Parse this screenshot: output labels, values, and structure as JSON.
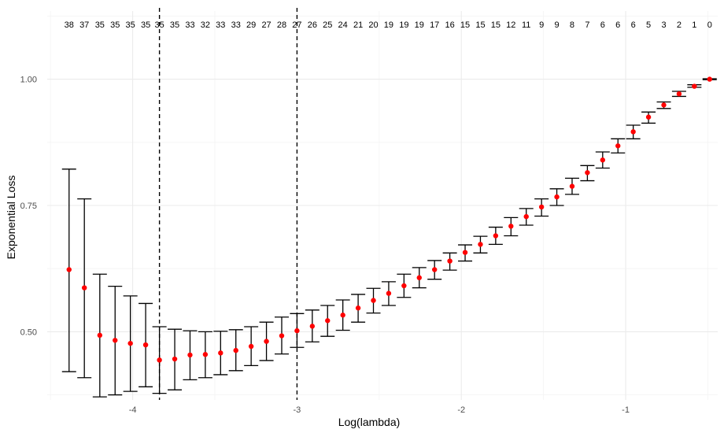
{
  "chart_data": {
    "type": "scatter",
    "xlabel": "Log(lambda)",
    "ylabel": "Exponential Loss",
    "xlim": [
      -4.52,
      -0.44
    ],
    "ylim": [
      0.365,
      1.135
    ],
    "x_ticks": [
      -4,
      -3,
      -2,
      -1
    ],
    "x_tick_labels": [
      "-4",
      "-3",
      "-2",
      "-1"
    ],
    "y_ticks": [
      0.5,
      0.75,
      1.0
    ],
    "y_tick_labels": [
      "0.50",
      "0.75",
      "1.00"
    ],
    "grid": true,
    "point_color": "#ff0000",
    "errorbar_color": "#000000",
    "vlines": [
      -3.837,
      -3.0
    ],
    "x": [
      -4.387,
      -4.294,
      -4.2,
      -4.107,
      -4.014,
      -3.921,
      -3.837,
      -3.744,
      -3.651,
      -3.558,
      -3.465,
      -3.372,
      -3.279,
      -3.186,
      -3.093,
      -3.0,
      -2.907,
      -2.814,
      -2.721,
      -2.628,
      -2.535,
      -2.442,
      -2.349,
      -2.256,
      -2.163,
      -2.07,
      -1.977,
      -1.884,
      -1.791,
      -1.698,
      -1.605,
      -1.512,
      -1.419,
      -1.326,
      -1.233,
      -1.14,
      -1.047,
      -0.954,
      -0.861,
      -0.768,
      -0.675,
      -0.582,
      -0.489
    ],
    "y": [
      0.623,
      0.587,
      0.493,
      0.483,
      0.477,
      0.474,
      0.444,
      0.446,
      0.454,
      0.455,
      0.458,
      0.463,
      0.471,
      0.481,
      0.492,
      0.502,
      0.511,
      0.522,
      0.533,
      0.547,
      0.562,
      0.576,
      0.591,
      0.607,
      0.623,
      0.64,
      0.657,
      0.673,
      0.69,
      0.709,
      0.728,
      0.747,
      0.767,
      0.788,
      0.815,
      0.84,
      0.868,
      0.896,
      0.925,
      0.949,
      0.971,
      0.986,
      1.0
    ],
    "y_upper": [
      0.822,
      0.763,
      0.614,
      0.59,
      0.571,
      0.556,
      0.51,
      0.505,
      0.502,
      0.5,
      0.501,
      0.504,
      0.51,
      0.519,
      0.529,
      0.536,
      0.543,
      0.552,
      0.563,
      0.574,
      0.586,
      0.599,
      0.614,
      0.627,
      0.641,
      0.656,
      0.672,
      0.689,
      0.707,
      0.726,
      0.744,
      0.763,
      0.783,
      0.804,
      0.829,
      0.856,
      0.882,
      0.909,
      0.935,
      0.955,
      0.976,
      0.989,
      1.001
    ],
    "y_lower": [
      0.421,
      0.409,
      0.371,
      0.375,
      0.382,
      0.391,
      0.378,
      0.385,
      0.405,
      0.409,
      0.415,
      0.423,
      0.433,
      0.443,
      0.456,
      0.469,
      0.48,
      0.491,
      0.503,
      0.519,
      0.537,
      0.552,
      0.568,
      0.587,
      0.604,
      0.622,
      0.64,
      0.656,
      0.673,
      0.69,
      0.711,
      0.729,
      0.75,
      0.772,
      0.799,
      0.824,
      0.854,
      0.882,
      0.913,
      0.942,
      0.966,
      0.984,
      0.999
    ],
    "top_labels": [
      "38",
      "37",
      "35",
      "35",
      "35",
      "35",
      "35",
      "35",
      "33",
      "32",
      "33",
      "33",
      "29",
      "27",
      "28",
      "27",
      "26",
      "25",
      "24",
      "21",
      "20",
      "19",
      "19",
      "19",
      "17",
      "16",
      "15",
      "15",
      "15",
      "12",
      "11",
      "9",
      "9",
      "8",
      "7",
      "6",
      "6",
      "6",
      "5",
      "3",
      "2",
      "1",
      "0"
    ]
  }
}
